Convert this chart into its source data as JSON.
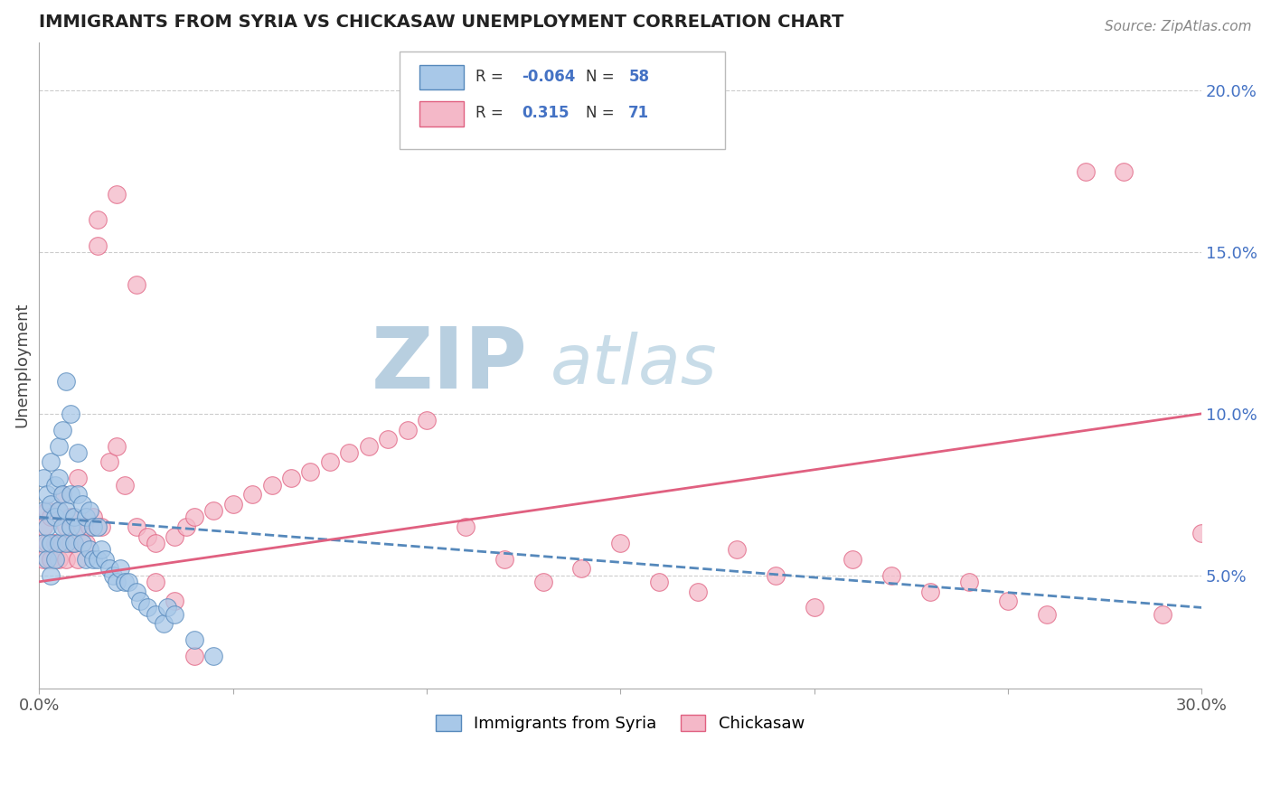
{
  "title": "IMMIGRANTS FROM SYRIA VS CHICKASAW UNEMPLOYMENT CORRELATION CHART",
  "source_text": "Source: ZipAtlas.com",
  "ylabel": "Unemployment",
  "xlim": [
    0.0,
    0.3
  ],
  "ylim": [
    0.015,
    0.215
  ],
  "yticks": [
    0.05,
    0.1,
    0.15,
    0.2
  ],
  "ytick_labels": [
    "5.0%",
    "10.0%",
    "15.0%",
    "20.0%"
  ],
  "xticks": [
    0.0,
    0.05,
    0.1,
    0.15,
    0.2,
    0.25,
    0.3
  ],
  "color_blue": "#a8c8e8",
  "color_pink": "#f4b8c8",
  "color_blue_line": "#5588bb",
  "color_pink_line": "#e06080",
  "watermark_zip": "ZIP",
  "watermark_atlas": "atlas",
  "watermark_color_zip": "#b8cfe0",
  "watermark_color_atlas": "#c8dce8",
  "blue_r": "-0.064",
  "blue_n": "58",
  "pink_r": "0.315",
  "pink_n": "71",
  "blue_scatter_x": [
    0.001,
    0.001,
    0.001,
    0.002,
    0.002,
    0.002,
    0.003,
    0.003,
    0.003,
    0.003,
    0.004,
    0.004,
    0.004,
    0.005,
    0.005,
    0.005,
    0.005,
    0.006,
    0.006,
    0.006,
    0.007,
    0.007,
    0.007,
    0.008,
    0.008,
    0.008,
    0.009,
    0.009,
    0.01,
    0.01,
    0.01,
    0.011,
    0.011,
    0.012,
    0.012,
    0.013,
    0.013,
    0.014,
    0.014,
    0.015,
    0.015,
    0.016,
    0.017,
    0.018,
    0.019,
    0.02,
    0.021,
    0.022,
    0.023,
    0.025,
    0.026,
    0.028,
    0.03,
    0.032,
    0.033,
    0.035,
    0.04,
    0.045
  ],
  "blue_scatter_y": [
    0.06,
    0.07,
    0.08,
    0.055,
    0.065,
    0.075,
    0.05,
    0.06,
    0.072,
    0.085,
    0.055,
    0.068,
    0.078,
    0.06,
    0.07,
    0.08,
    0.09,
    0.065,
    0.075,
    0.095,
    0.06,
    0.07,
    0.11,
    0.065,
    0.075,
    0.1,
    0.06,
    0.068,
    0.065,
    0.075,
    0.088,
    0.06,
    0.072,
    0.055,
    0.068,
    0.058,
    0.07,
    0.055,
    0.065,
    0.055,
    0.065,
    0.058,
    0.055,
    0.052,
    0.05,
    0.048,
    0.052,
    0.048,
    0.048,
    0.045,
    0.042,
    0.04,
    0.038,
    0.035,
    0.04,
    0.038,
    0.03,
    0.025
  ],
  "pink_scatter_x": [
    0.001,
    0.001,
    0.002,
    0.002,
    0.003,
    0.003,
    0.004,
    0.005,
    0.005,
    0.006,
    0.006,
    0.007,
    0.007,
    0.008,
    0.008,
    0.009,
    0.01,
    0.01,
    0.011,
    0.012,
    0.013,
    0.014,
    0.015,
    0.016,
    0.018,
    0.02,
    0.022,
    0.025,
    0.028,
    0.03,
    0.035,
    0.038,
    0.04,
    0.045,
    0.05,
    0.055,
    0.06,
    0.065,
    0.07,
    0.075,
    0.08,
    0.085,
    0.09,
    0.095,
    0.1,
    0.11,
    0.12,
    0.13,
    0.14,
    0.15,
    0.16,
    0.17,
    0.18,
    0.19,
    0.2,
    0.21,
    0.22,
    0.23,
    0.24,
    0.25,
    0.26,
    0.27,
    0.28,
    0.29,
    0.3,
    0.015,
    0.02,
    0.025,
    0.03,
    0.035,
    0.04
  ],
  "pink_scatter_y": [
    0.055,
    0.065,
    0.06,
    0.07,
    0.055,
    0.068,
    0.06,
    0.055,
    0.07,
    0.06,
    0.075,
    0.055,
    0.065,
    0.06,
    0.068,
    0.06,
    0.055,
    0.08,
    0.065,
    0.06,
    0.065,
    0.068,
    0.152,
    0.065,
    0.085,
    0.09,
    0.078,
    0.065,
    0.062,
    0.06,
    0.062,
    0.065,
    0.068,
    0.07,
    0.072,
    0.075,
    0.078,
    0.08,
    0.082,
    0.085,
    0.088,
    0.09,
    0.092,
    0.095,
    0.098,
    0.065,
    0.055,
    0.048,
    0.052,
    0.06,
    0.048,
    0.045,
    0.058,
    0.05,
    0.04,
    0.055,
    0.05,
    0.045,
    0.048,
    0.042,
    0.038,
    0.175,
    0.175,
    0.038,
    0.063,
    0.16,
    0.168,
    0.14,
    0.048,
    0.042,
    0.025
  ],
  "blue_line_x": [
    0.0,
    0.3
  ],
  "blue_line_y": [
    0.068,
    0.04
  ],
  "pink_line_x": [
    0.0,
    0.3
  ],
  "pink_line_y": [
    0.048,
    0.1
  ]
}
